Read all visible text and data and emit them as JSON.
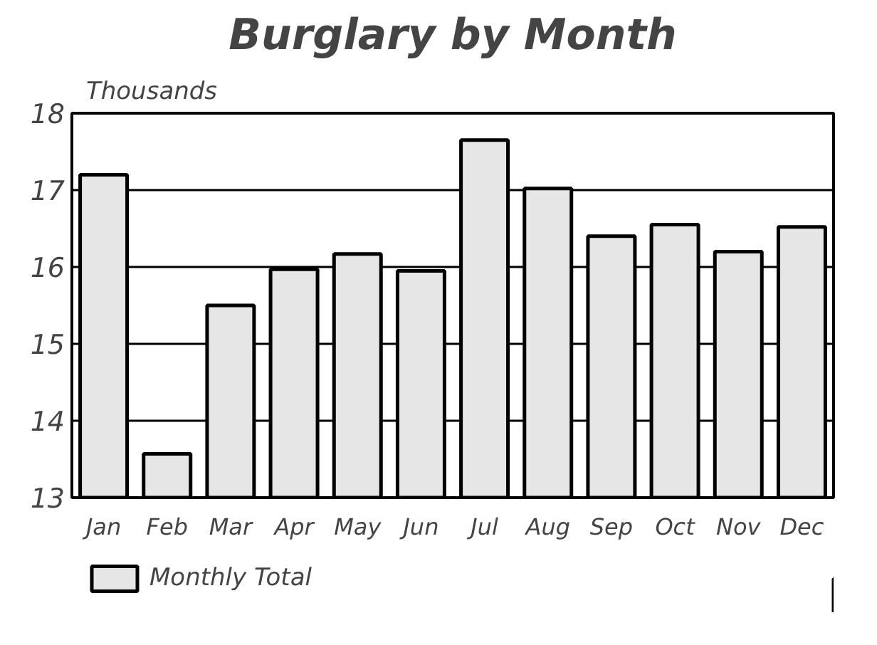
{
  "chart_data": {
    "type": "bar",
    "title": "Burglary by Month",
    "ylabel": "Thousands",
    "categories": [
      "Jan",
      "Feb",
      "Mar",
      "Apr",
      "May",
      "Jun",
      "Jul",
      "Aug",
      "Sep",
      "Oct",
      "Nov",
      "Dec"
    ],
    "series": [
      {
        "name": "Monthly Total",
        "color": "#e6e6e6",
        "values": [
          17.2,
          13.57,
          15.5,
          15.97,
          16.17,
          15.95,
          17.65,
          17.02,
          16.4,
          16.55,
          16.2,
          16.52
        ]
      }
    ],
    "ylim": [
      13,
      18
    ],
    "yticks": [
      13,
      14,
      15,
      16,
      17,
      18
    ],
    "grid": "y",
    "legend": "bottom"
  }
}
